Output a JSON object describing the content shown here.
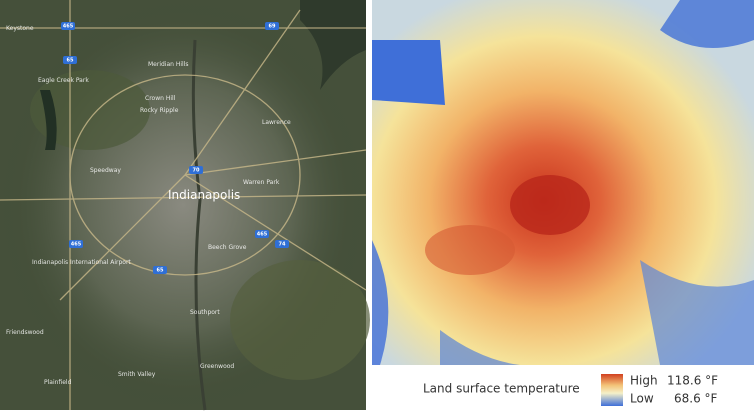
{
  "satellite_map": {
    "city": "Indianapolis",
    "places": [
      "Keystone",
      "Meridian Hills",
      "Eagle Creek Park",
      "Crown Hill",
      "Rocky Ripple",
      "Lawrence",
      "Speedway",
      "Warren Park",
      "Beech Grove",
      "Indianapolis International Airport",
      "Southport",
      "Greenwood",
      "Smith Valley",
      "Friendswood",
      "Plainfield"
    ],
    "shields": [
      "465",
      "65",
      "69",
      "70",
      "74",
      "465",
      "65",
      "465"
    ]
  },
  "legend": {
    "title": "Land surface temperature",
    "high": {
      "label": "High",
      "value": "118.6 °F"
    },
    "low": {
      "label": "Low",
      "value": "68.6 °F"
    }
  }
}
